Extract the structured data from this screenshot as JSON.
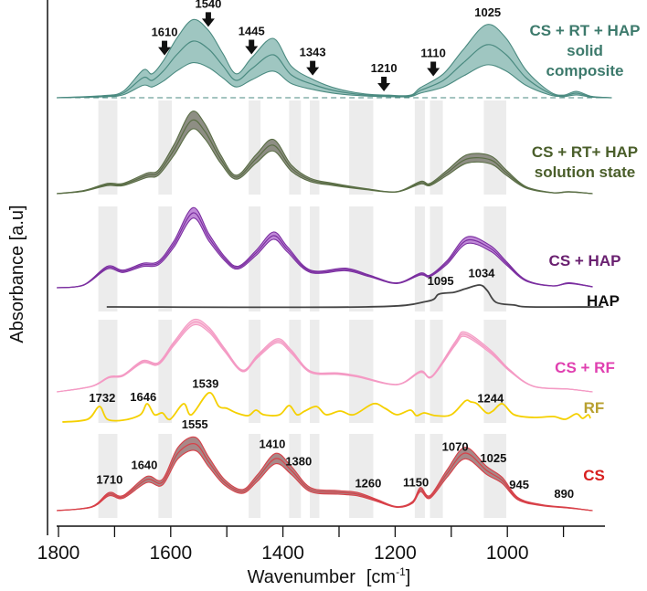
{
  "chart_data": {
    "type": "line",
    "title": "",
    "xlabel": "Wavenumber",
    "xlabel_unit": "[cm",
    "xlabel_unit_sup": "-1",
    "xlabel_unit_end": "]",
    "ylabel": "Absorbance [a.u]",
    "xlim": [
      1800,
      830
    ],
    "x_reversed": true,
    "x_ticks": [
      1800,
      1700,
      1600,
      1500,
      1400,
      1300,
      1200,
      1100,
      1000,
      900
    ],
    "x_tick_labels": [
      "1800",
      "",
      "1600",
      "",
      "1400",
      "",
      "1200",
      "",
      "1000",
      ""
    ],
    "y_ticks": "none",
    "grid": false,
    "legend": "labels at right of each trace",
    "highlight_bands": [
      [
        1729,
        1695
      ],
      [
        1622,
        1598
      ],
      [
        1461,
        1440
      ],
      [
        1389,
        1368
      ],
      [
        1352,
        1335
      ],
      [
        1282,
        1239
      ],
      [
        1165,
        1147
      ],
      [
        1138,
        1115
      ],
      [
        1042,
        1002
      ]
    ],
    "highlight_band_color": "#ececec",
    "series": [
      {
        "name_lines": [
          "CS + RT + HAP",
          "solid",
          "composite"
        ],
        "line_color": "#4a8a80",
        "fill_color": "#9fc6c1",
        "label_color": "#3d7a6c",
        "spread": 0.38,
        "dashed_baseline": true,
        "points": [
          [
            1803,
            0
          ],
          [
            1720,
            0.017
          ],
          [
            1685,
            0.05
          ],
          [
            1649,
            0.22
          ],
          [
            1633,
            0.19
          ],
          [
            1612,
            0.3
          ],
          [
            1588,
            0.48
          ],
          [
            1560,
            0.62
          ],
          [
            1532,
            0.53
          ],
          [
            1507,
            0.35
          ],
          [
            1483,
            0.19
          ],
          [
            1455,
            0.32
          ],
          [
            1417,
            0.47
          ],
          [
            1385,
            0.25
          ],
          [
            1344,
            0.14
          ],
          [
            1302,
            0.07
          ],
          [
            1253,
            0.03
          ],
          [
            1211,
            0.02
          ],
          [
            1173,
            0.02
          ],
          [
            1155,
            0.08
          ],
          [
            1114,
            0.19
          ],
          [
            1079,
            0.38
          ],
          [
            1037,
            0.58
          ],
          [
            1002,
            0.47
          ],
          [
            967,
            0.22
          ],
          [
            925,
            0.05
          ],
          [
            900,
            0.02
          ],
          [
            877,
            0.05
          ],
          [
            849,
            0.01
          ],
          [
            814,
            0
          ]
        ],
        "annotations": [
          {
            "text": "1610",
            "x": 1611,
            "arrow": true
          },
          {
            "text": "1540",
            "x": 1533,
            "arrow": true
          },
          {
            "text": "1445",
            "x": 1456,
            "arrow": true
          },
          {
            "text": "1343",
            "x": 1347,
            "arrow": true
          },
          {
            "text": "1210",
            "x": 1220,
            "arrow": true
          },
          {
            "text": "1110",
            "x": 1132,
            "arrow": true
          },
          {
            "text": "1025",
            "x": 1035,
            "arrow": false
          }
        ]
      },
      {
        "name_lines": [
          "CS + RT+ HAP",
          "solution state"
        ],
        "line_color": "#5a6e45",
        "fill_color": "#8e8e84",
        "label_color": "#4a5e2a",
        "spread": 0.12,
        "points": [
          [
            1803,
            0
          ],
          [
            1755,
            0.03
          ],
          [
            1713,
            0.1
          ],
          [
            1685,
            0.1
          ],
          [
            1643,
            0.2
          ],
          [
            1622,
            0.23
          ],
          [
            1594,
            0.48
          ],
          [
            1563,
            0.8
          ],
          [
            1539,
            0.68
          ],
          [
            1511,
            0.38
          ],
          [
            1483,
            0.18
          ],
          [
            1448,
            0.38
          ],
          [
            1417,
            0.53
          ],
          [
            1385,
            0.28
          ],
          [
            1351,
            0.15
          ],
          [
            1309,
            0.1
          ],
          [
            1253,
            0.05
          ],
          [
            1197,
            0.02
          ],
          [
            1155,
            0.12
          ],
          [
            1138,
            0.1
          ],
          [
            1107,
            0.23
          ],
          [
            1072,
            0.38
          ],
          [
            1030,
            0.37
          ],
          [
            1002,
            0.23
          ],
          [
            967,
            0.07
          ],
          [
            919,
            0.01
          ],
          [
            890,
            0.02
          ],
          [
            848,
            0
          ]
        ],
        "annotations": []
      },
      {
        "name_lines": [
          "CS + HAP"
        ],
        "line_color": "#7b2fa0",
        "fill_color": "#c08ad8",
        "label_color": "#6a2070",
        "spread": 0.07,
        "points": [
          [
            1803,
            0
          ],
          [
            1755,
            0.03
          ],
          [
            1713,
            0.22
          ],
          [
            1685,
            0.18
          ],
          [
            1650,
            0.25
          ],
          [
            1622,
            0.27
          ],
          [
            1594,
            0.48
          ],
          [
            1560,
            0.82
          ],
          [
            1532,
            0.55
          ],
          [
            1504,
            0.32
          ],
          [
            1480,
            0.22
          ],
          [
            1448,
            0.38
          ],
          [
            1417,
            0.57
          ],
          [
            1392,
            0.42
          ],
          [
            1351,
            0.18
          ],
          [
            1288,
            0.2
          ],
          [
            1246,
            0.13
          ],
          [
            1197,
            0.05
          ],
          [
            1155,
            0.15
          ],
          [
            1138,
            0.13
          ],
          [
            1107,
            0.28
          ],
          [
            1072,
            0.52
          ],
          [
            1030,
            0.43
          ],
          [
            1002,
            0.27
          ],
          [
            967,
            0.08
          ],
          [
            919,
            0.02
          ],
          [
            890,
            0.05
          ],
          [
            848,
            0.01
          ]
        ],
        "annotations": []
      },
      {
        "name_lines": [
          "HAP"
        ],
        "line_color": "#444444",
        "fill_color": "",
        "label_color": "#111111",
        "spread": 0,
        "points": [
          [
            1714,
            0
          ],
          [
            1253,
            0
          ],
          [
            1144,
            0.06
          ],
          [
            1122,
            0.14
          ],
          [
            1095,
            0.16
          ],
          [
            1074,
            0.2
          ],
          [
            1049,
            0.24
          ],
          [
            1036,
            0.18
          ],
          [
            1020,
            0.05
          ],
          [
            987,
            0.02
          ],
          [
            960,
            0
          ],
          [
            829,
            0
          ]
        ],
        "annotations": [
          {
            "text": "1095",
            "x": 1119,
            "arrow": false
          },
          {
            "text": "1034",
            "x": 1046,
            "arrow": false
          }
        ]
      },
      {
        "name_lines": [
          "CS + RF"
        ],
        "line_color": "#f49ac4",
        "fill_color": "#f8c8dd",
        "label_color": "#e040b0",
        "spread": 0.04,
        "points": [
          [
            1803,
            0
          ],
          [
            1741,
            0.06
          ],
          [
            1710,
            0.16
          ],
          [
            1685,
            0.18
          ],
          [
            1650,
            0.33
          ],
          [
            1622,
            0.31
          ],
          [
            1594,
            0.53
          ],
          [
            1560,
            0.76
          ],
          [
            1532,
            0.68
          ],
          [
            1504,
            0.46
          ],
          [
            1472,
            0.23
          ],
          [
            1445,
            0.39
          ],
          [
            1410,
            0.56
          ],
          [
            1385,
            0.44
          ],
          [
            1351,
            0.22
          ],
          [
            1302,
            0.2
          ],
          [
            1267,
            0.17
          ],
          [
            1197,
            0.08
          ],
          [
            1155,
            0.22
          ],
          [
            1134,
            0.17
          ],
          [
            1093,
            0.53
          ],
          [
            1075,
            0.63
          ],
          [
            1030,
            0.44
          ],
          [
            995,
            0.23
          ],
          [
            953,
            0.06
          ],
          [
            890,
            0.03
          ],
          [
            848,
            0
          ]
        ],
        "annotations": []
      },
      {
        "name_lines": [
          "RF"
        ],
        "line_color": "#f5d000",
        "fill_color": "",
        "label_color": "#b8a030",
        "spread": 0,
        "points": [
          [
            1793,
            0
          ],
          [
            1748,
            0.03
          ],
          [
            1727,
            0.17
          ],
          [
            1713,
            0.03
          ],
          [
            1685,
            0.02
          ],
          [
            1654,
            0.08
          ],
          [
            1642,
            0.2
          ],
          [
            1629,
            0.08
          ],
          [
            1615,
            0.1
          ],
          [
            1601,
            0.03
          ],
          [
            1577,
            0.2
          ],
          [
            1563,
            0.08
          ],
          [
            1532,
            0.32
          ],
          [
            1514,
            0.17
          ],
          [
            1500,
            0.15
          ],
          [
            1483,
            0.1
          ],
          [
            1462,
            0.07
          ],
          [
            1448,
            0.13
          ],
          [
            1434,
            0.08
          ],
          [
            1406,
            0.08
          ],
          [
            1389,
            0.18
          ],
          [
            1375,
            0.08
          ],
          [
            1361,
            0.12
          ],
          [
            1340,
            0.17
          ],
          [
            1323,
            0.08
          ],
          [
            1298,
            0.12
          ],
          [
            1274,
            0.08
          ],
          [
            1239,
            0.2
          ],
          [
            1218,
            0.15
          ],
          [
            1197,
            0.08
          ],
          [
            1173,
            0.13
          ],
          [
            1162,
            0.07
          ],
          [
            1148,
            0.1
          ],
          [
            1128,
            0.07
          ],
          [
            1100,
            0.08
          ],
          [
            1075,
            0.23
          ],
          [
            1065,
            0.22
          ],
          [
            1054,
            0.2
          ],
          [
            1037,
            0.1
          ],
          [
            1026,
            0.12
          ],
          [
            1009,
            0.2
          ],
          [
            988,
            0.08
          ],
          [
            953,
            0.05
          ],
          [
            918,
            0.06
          ],
          [
            897,
            0.03
          ],
          [
            877,
            0.09
          ],
          [
            866,
            0.04
          ],
          [
            856,
            0.08
          ],
          [
            852,
            0.04
          ]
        ],
        "annotations": [
          {
            "text": "1732",
            "x": 1722,
            "arrow": false
          },
          {
            "text": "1646",
            "x": 1649,
            "arrow": false
          },
          {
            "text": "1539",
            "x": 1538,
            "arrow": false
          },
          {
            "text": "1244",
            "x": 1030,
            "arrow": false
          }
        ]
      },
      {
        "name_lines": [
          "CS"
        ],
        "line_color": "#d84048",
        "fill_color": "#a88888",
        "label_color": "#d82020",
        "spread": 0.1,
        "points": [
          [
            1803,
            0
          ],
          [
            1741,
            0.04
          ],
          [
            1710,
            0.18
          ],
          [
            1685,
            0.15
          ],
          [
            1643,
            0.34
          ],
          [
            1615,
            0.31
          ],
          [
            1587,
            0.63
          ],
          [
            1556,
            0.73
          ],
          [
            1532,
            0.53
          ],
          [
            1504,
            0.31
          ],
          [
            1472,
            0.21
          ],
          [
            1445,
            0.36
          ],
          [
            1413,
            0.57
          ],
          [
            1385,
            0.44
          ],
          [
            1351,
            0.23
          ],
          [
            1302,
            0.2
          ],
          [
            1267,
            0.18
          ],
          [
            1232,
            0.11
          ],
          [
            1197,
            0.04
          ],
          [
            1169,
            0.09
          ],
          [
            1155,
            0.23
          ],
          [
            1138,
            0.15
          ],
          [
            1107,
            0.41
          ],
          [
            1075,
            0.63
          ],
          [
            1037,
            0.44
          ],
          [
            1009,
            0.33
          ],
          [
            981,
            0.13
          ],
          [
            939,
            0.06
          ],
          [
            890,
            0.03
          ],
          [
            848,
            0
          ]
        ],
        "annotations": [
          {
            "text": "1710",
            "x": 1709
          },
          {
            "text": "1640",
            "x": 1647
          },
          {
            "text": "1555",
            "x": 1557
          },
          {
            "text": "1410",
            "x": 1419
          },
          {
            "text": "1380",
            "x": 1372
          },
          {
            "text": "1260",
            "x": 1248
          },
          {
            "text": "1150",
            "x": 1163
          },
          {
            "text": "1070",
            "x": 1093
          },
          {
            "text": "1025",
            "x": 1025
          },
          {
            "text": "945",
            "x": 979
          },
          {
            "text": "890",
            "x": 899
          }
        ]
      }
    ]
  }
}
